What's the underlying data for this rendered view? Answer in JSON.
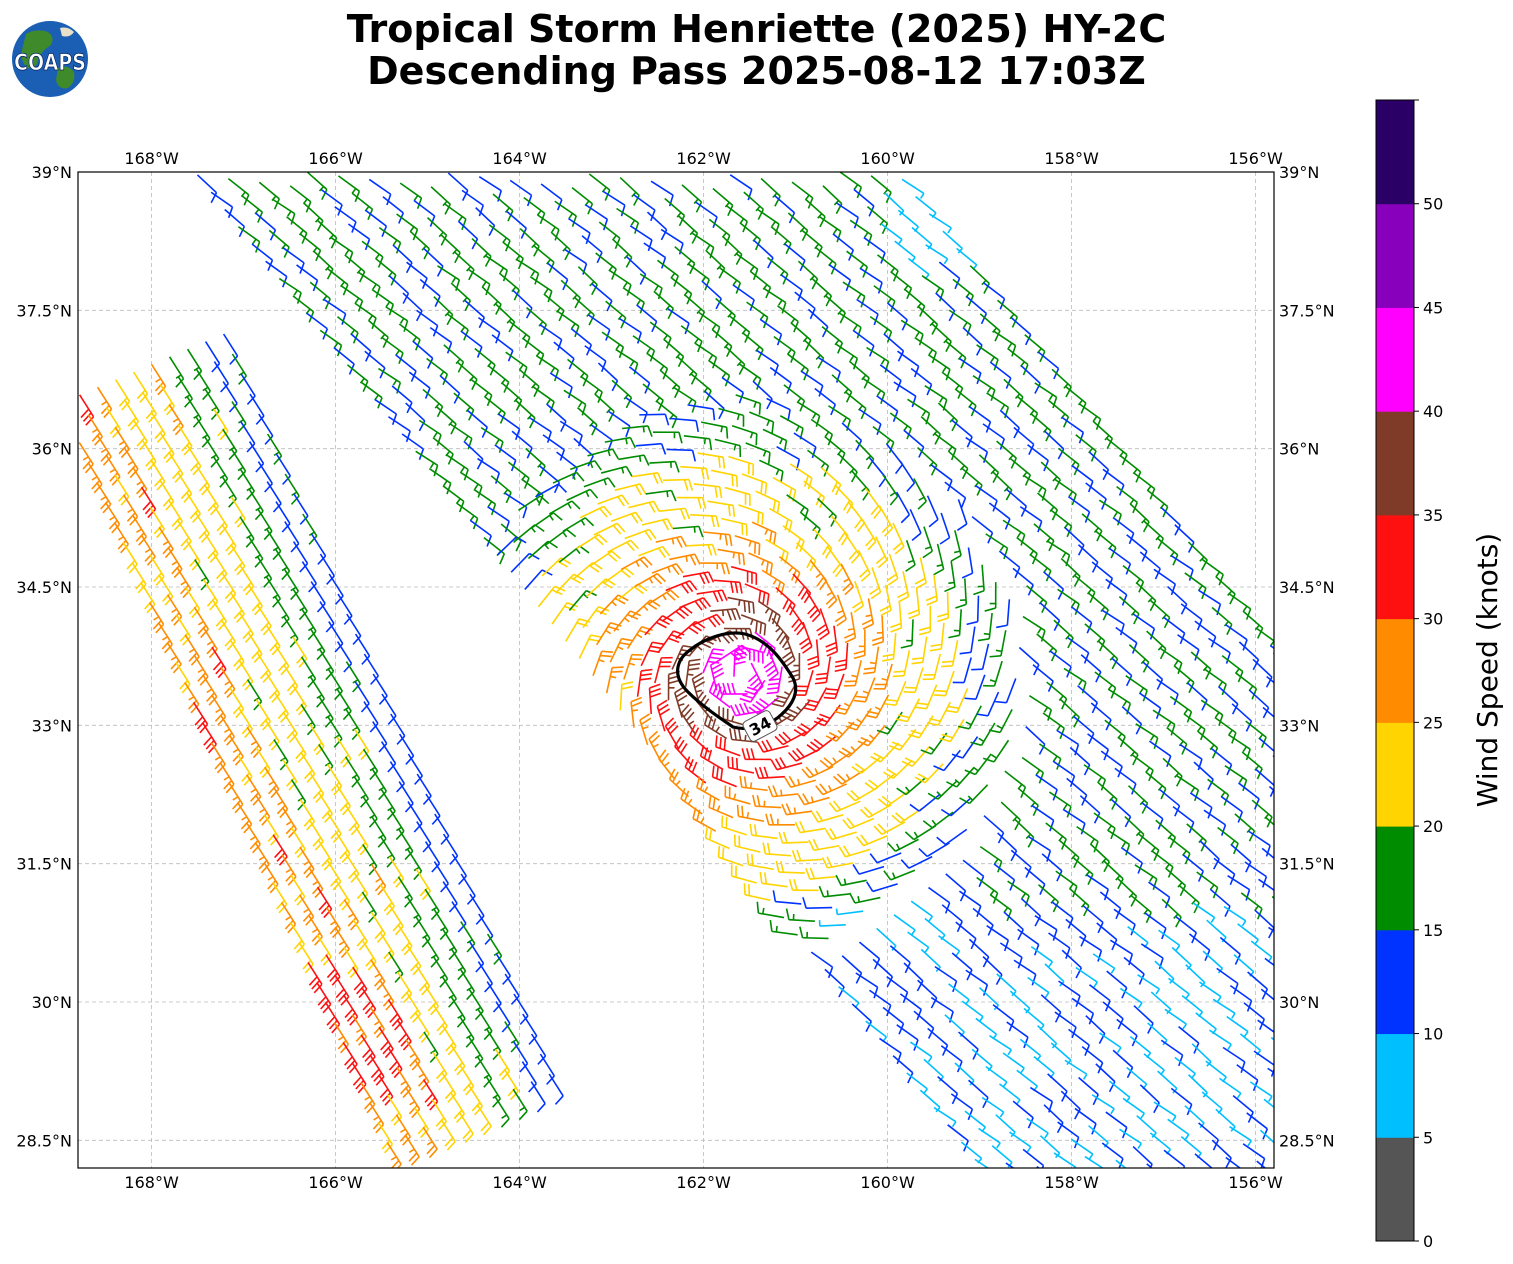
{
  "title": {
    "line1": "Tropical Storm Henriette (2025) HY-2C",
    "line2": "Descending Pass 2025-08-12 17:03Z"
  },
  "logo": {
    "text": "COAPS",
    "icon": "globe-logo-icon"
  },
  "map": {
    "lon_labels": [
      "168°W",
      "166°W",
      "164°W",
      "162°W",
      "160°W",
      "158°W",
      "156°W"
    ],
    "lon_values": [
      -168,
      -166,
      -164,
      -162,
      -160,
      -158,
      -156
    ],
    "lat_labels": [
      "39°N",
      "37.5°N",
      "36°N",
      "34.5°N",
      "33°N",
      "31.5°N",
      "30°N",
      "28.5°N"
    ],
    "lat_values": [
      39,
      37.5,
      36,
      34.5,
      33,
      31.5,
      30,
      28.5
    ],
    "lon_range": [
      -168.8,
      -155.8
    ],
    "lat_range": [
      28.2,
      39.0
    ],
    "contour_label": "34"
  },
  "colorbar": {
    "label": "Wind Speed (knots)",
    "tick_labels": [
      "0",
      "5",
      "10",
      "15",
      "20",
      "25",
      "30",
      "35",
      "40",
      "45",
      "50"
    ],
    "bins": [
      {
        "min": 0,
        "max": 5,
        "color": "#555555"
      },
      {
        "min": 5,
        "max": 10,
        "color": "#00bfff"
      },
      {
        "min": 10,
        "max": 15,
        "color": "#0033ff"
      },
      {
        "min": 15,
        "max": 20,
        "color": "#008c00"
      },
      {
        "min": 20,
        "max": 25,
        "color": "#ffd400"
      },
      {
        "min": 25,
        "max": 30,
        "color": "#ff8c00"
      },
      {
        "min": 30,
        "max": 35,
        "color": "#ff1010"
      },
      {
        "min": 35,
        "max": 40,
        "color": "#7f3b28"
      },
      {
        "min": 40,
        "max": 45,
        "color": "#ff00ff"
      },
      {
        "min": 45,
        "max": 50,
        "color": "#8800bb"
      },
      {
        "min": 50,
        "max": 55,
        "color": "#2a0066"
      }
    ]
  },
  "storm": {
    "center_lon": -161.6,
    "center_lat": 33.55,
    "peak_kt": 44
  }
}
